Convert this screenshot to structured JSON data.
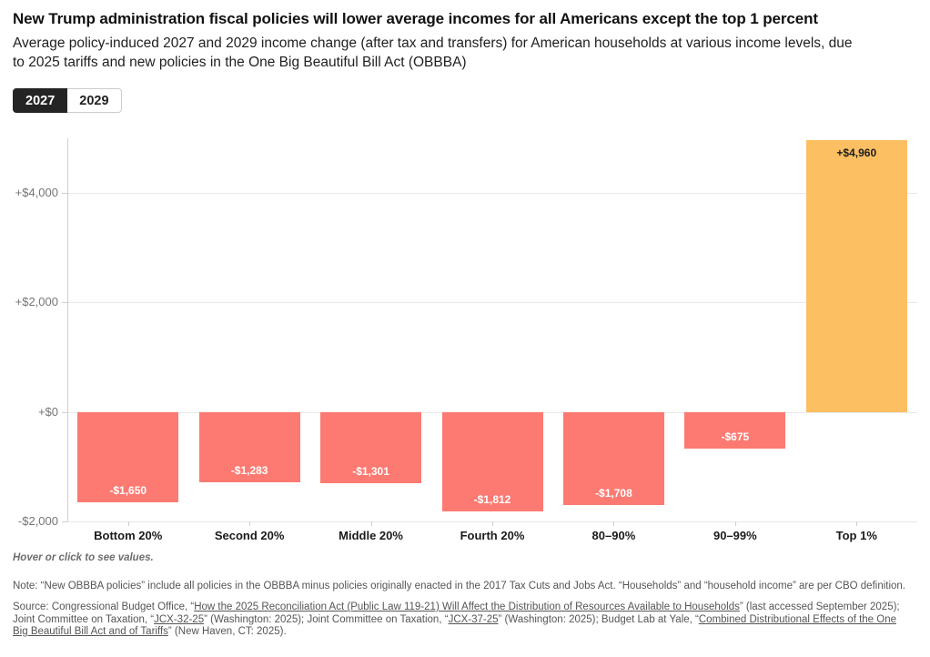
{
  "header": {
    "title": "New Trump administration fiscal policies will lower average incomes for all Americans except the top 1 percent",
    "subtitle": "Average policy-induced 2027 and 2029 income change (after tax and transfers) for American households at various income levels, due to 2025 tariffs and new policies in the One Big Beautiful Bill Act (OBBBA)"
  },
  "toggle": {
    "options": [
      {
        "label": "2027",
        "selected": true
      },
      {
        "label": "2029",
        "selected": false
      }
    ]
  },
  "chart_data": {
    "type": "bar",
    "title": "Average policy-induced income change by income group, 2027",
    "categories": [
      "Bottom 20%",
      "Second 20%",
      "Middle 20%",
      "Fourth 20%",
      "80–90%",
      "90–99%",
      "Top 1%"
    ],
    "values": [
      -1650,
      -1283,
      -1301,
      -1812,
      -1708,
      -675,
      4960
    ],
    "value_labels": [
      "-$1,650",
      "-$1,283",
      "-$1,301",
      "-$1,812",
      "-$1,708",
      "-$675",
      "+$4,960"
    ],
    "xlabel": "",
    "ylabel": "",
    "ylim": [
      -2000,
      5000
    ],
    "yticks": [
      {
        "value": 4000,
        "label": "+$4,000"
      },
      {
        "value": 2000,
        "label": "+$2,000"
      },
      {
        "value": 0,
        "label": "+$0"
      },
      {
        "value": -2000,
        "label": "-$2,000"
      }
    ],
    "grid": true,
    "legend_position": "none",
    "colors": {
      "negative": "#fc7a72",
      "positive": "#fcbf62"
    }
  },
  "footer": {
    "hint": "Hover or click to see values.",
    "note": "Note: “New OBBBA policies” include all policies in the OBBBA minus policies originally enacted in the 2017 Tax Cuts and Jobs Act. “Households” and “household income” are per CBO definition.",
    "source": {
      "parts": [
        {
          "text": "Source: Congressional Budget Office, “"
        },
        {
          "link": "How the 2025 Reconciliation Act (Public Law 119-21) Will Affect the Distribution of Resources Available to Households"
        },
        {
          "text": "” (last accessed September 2025); Joint Committee on Taxation, “"
        },
        {
          "link": "JCX-32-25"
        },
        {
          "text": "” (Washington: 2025); Joint Committee on Taxation, “"
        },
        {
          "link": "JCX-37-25"
        },
        {
          "text": "” (Washington: 2025); Budget Lab at Yale, “"
        },
        {
          "link": "Combined Distributional Effects of the One Big Beautiful Bill Act and of Tariffs"
        },
        {
          "text": "” (New Haven, CT: 2025)."
        }
      ]
    }
  }
}
